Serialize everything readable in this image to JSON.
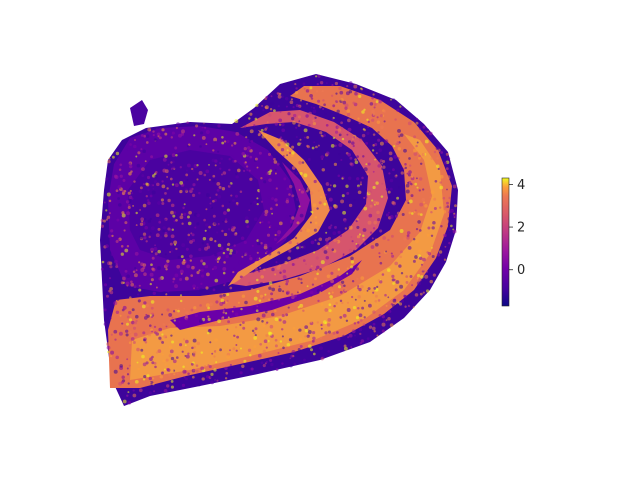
{
  "chart_data": {
    "type": "scatter",
    "description_kind": "spatial expression map",
    "colormap": "plasma",
    "colorbar": {
      "vmin": -1.7,
      "vmax": 4.3,
      "ticks": [
        4,
        2,
        0
      ],
      "tick_labels": [
        "4",
        "2",
        "0"
      ]
    },
    "axes_visible": false,
    "grid": false,
    "colors": {
      "low": "#0d0887",
      "mid": "#b52f8c",
      "high": "#f0f921",
      "background": "#ffffff"
    }
  }
}
